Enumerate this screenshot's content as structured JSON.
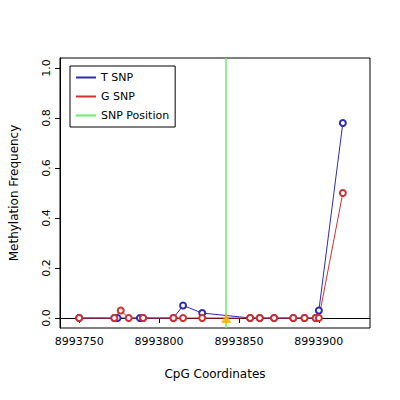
{
  "chart_data": {
    "type": "line",
    "x_label": "CpG Coordinates",
    "y_label": "Methylation Frequency",
    "xlim": [
      8993738,
      8993932
    ],
    "xticks": [
      8993750,
      8993800,
      8993850,
      8993900
    ],
    "ylim": [
      -0.04,
      1.04
    ],
    "yticks": [
      {
        "value": 0,
        "label": "0.0"
      },
      {
        "value": 0.2,
        "label": "0.2"
      },
      {
        "value": 0.4,
        "label": "0.4"
      },
      {
        "value": 0.6,
        "label": "0.6"
      },
      {
        "value": 0.8,
        "label": "0.8"
      },
      {
        "value": 1,
        "label": "1.0"
      }
    ],
    "grid": false,
    "legend": "upper left",
    "marker": "circle",
    "series": [
      {
        "name": "T SNP",
        "color": "#2b2bb8",
        "x": [
          8993750,
          8993772,
          8993774,
          8993788,
          8993790,
          8993809,
          8993815,
          8993827,
          8993857,
          8993863,
          8993872,
          8993884,
          8993891,
          8993898,
          8993900,
          8993915
        ],
        "values": [
          0,
          0,
          0,
          0,
          0,
          0,
          0.05,
          0.02,
          0,
          0,
          0,
          0,
          0,
          0,
          0.03,
          0.78
        ]
      },
      {
        "name": "G SNP",
        "color": "#d03030",
        "x": [
          8993750,
          8993772,
          8993776,
          8993781,
          8993790,
          8993809,
          8993815,
          8993827,
          8993857,
          8993863,
          8993872,
          8993884,
          8993891,
          8993898,
          8993900,
          8993915
        ],
        "values": [
          0,
          0,
          0.03,
          0,
          0,
          0,
          0,
          0,
          0,
          0,
          0,
          0,
          0,
          0,
          0,
          0.5
        ]
      }
    ],
    "snp": {
      "name": "SNP Position",
      "color": "#66ee66",
      "x": 8993842,
      "value": 0,
      "marker_color": "#ffa500",
      "marker": "triangle"
    }
  }
}
